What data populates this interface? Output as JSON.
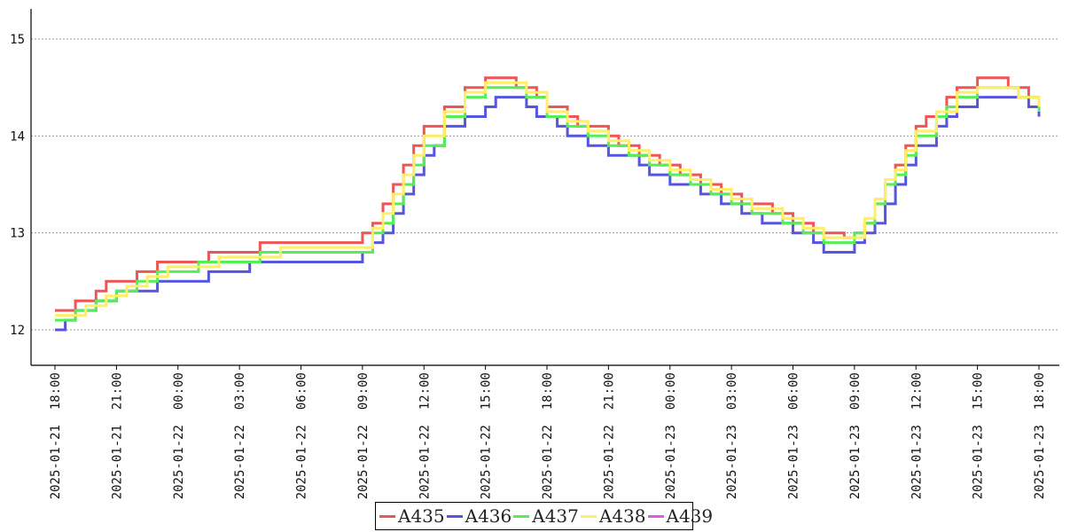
{
  "chart_data": {
    "type": "line",
    "x_label_format": "YYYY-MM-DD HH:MM",
    "x_ticks": [
      "2025-01-21  18:00",
      "2025-01-21  21:00",
      "2025-01-22  00:00",
      "2025-01-22  03:00",
      "2025-01-22  06:00",
      "2025-01-22  09:00",
      "2025-01-22  12:00",
      "2025-01-22  15:00",
      "2025-01-22  18:00",
      "2025-01-22  21:00",
      "2025-01-23  00:00",
      "2025-01-23  03:00",
      "2025-01-23  06:00",
      "2025-01-23  09:00",
      "2025-01-23  12:00",
      "2025-01-23  15:00",
      "2025-01-23  18:00"
    ],
    "y_ticks": [
      "12",
      "13",
      "14",
      "15"
    ],
    "ylim": [
      11.67,
      15.3
    ],
    "grid": "horizontal dotted",
    "legend_position": "bottom-center",
    "series": [
      {
        "name": "A435",
        "color": "#ee5555",
        "points": [
          [
            "2025-01-21 18:00",
            12.2
          ],
          [
            "2025-01-21 19:00",
            12.3
          ],
          [
            "2025-01-21 20:00",
            12.4
          ],
          [
            "2025-01-21 20:30",
            12.5
          ],
          [
            "2025-01-21 22:00",
            12.6
          ],
          [
            "2025-01-21 23:00",
            12.7
          ],
          [
            "2025-01-22 01:30",
            12.8
          ],
          [
            "2025-01-22 04:00",
            12.9
          ],
          [
            "2025-01-22 08:30",
            12.9
          ],
          [
            "2025-01-22 09:00",
            13.0
          ],
          [
            "2025-01-22 09:30",
            13.1
          ],
          [
            "2025-01-22 10:00",
            13.3
          ],
          [
            "2025-01-22 10:30",
            13.5
          ],
          [
            "2025-01-22 11:00",
            13.7
          ],
          [
            "2025-01-22 11:30",
            13.9
          ],
          [
            "2025-01-22 12:00",
            14.1
          ],
          [
            "2025-01-22 13:00",
            14.3
          ],
          [
            "2025-01-22 14:00",
            14.5
          ],
          [
            "2025-01-22 15:00",
            14.6
          ],
          [
            "2025-01-22 16:30",
            14.5
          ],
          [
            "2025-01-22 17:30",
            14.4
          ],
          [
            "2025-01-22 18:00",
            14.3
          ],
          [
            "2025-01-22 19:00",
            14.2
          ],
          [
            "2025-01-22 19:30",
            14.1
          ],
          [
            "2025-01-22 21:00",
            14.0
          ],
          [
            "2025-01-22 21:30",
            13.9
          ],
          [
            "2025-01-22 22:30",
            13.8
          ],
          [
            "2025-01-22 23:30",
            13.7
          ],
          [
            "2025-01-23 00:30",
            13.6
          ],
          [
            "2025-01-23 01:30",
            13.5
          ],
          [
            "2025-01-23 02:30",
            13.4
          ],
          [
            "2025-01-23 03:30",
            13.3
          ],
          [
            "2025-01-23 05:00",
            13.2
          ],
          [
            "2025-01-23 06:00",
            13.1
          ],
          [
            "2025-01-23 07:00",
            13.0
          ],
          [
            "2025-01-23 08:30",
            12.95
          ],
          [
            "2025-01-23 09:00",
            13.0
          ],
          [
            "2025-01-23 09:30",
            13.1
          ],
          [
            "2025-01-23 10:00",
            13.3
          ],
          [
            "2025-01-23 10:30",
            13.5
          ],
          [
            "2025-01-23 11:00",
            13.7
          ],
          [
            "2025-01-23 11:30",
            13.9
          ],
          [
            "2025-01-23 12:00",
            14.1
          ],
          [
            "2025-01-23 12:30",
            14.2
          ],
          [
            "2025-01-23 13:30",
            14.4
          ],
          [
            "2025-01-23 14:00",
            14.5
          ],
          [
            "2025-01-23 15:00",
            14.6
          ],
          [
            "2025-01-23 16:30",
            14.5
          ],
          [
            "2025-01-23 17:30",
            14.4
          ],
          [
            "2025-01-23 18:00",
            14.3
          ]
        ]
      },
      {
        "name": "A436",
        "color": "#5555dd",
        "points": [
          [
            "2025-01-21 18:00",
            12.0
          ],
          [
            "2025-01-21 18:30",
            12.1
          ],
          [
            "2025-01-21 19:00",
            12.2
          ],
          [
            "2025-01-21 20:00",
            12.3
          ],
          [
            "2025-01-21 21:00",
            12.4
          ],
          [
            "2025-01-21 23:00",
            12.5
          ],
          [
            "2025-01-22 01:30",
            12.6
          ],
          [
            "2025-01-22 03:30",
            12.7
          ],
          [
            "2025-01-22 09:00",
            12.8
          ],
          [
            "2025-01-22 09:30",
            12.9
          ],
          [
            "2025-01-22 10:00",
            13.0
          ],
          [
            "2025-01-22 10:30",
            13.2
          ],
          [
            "2025-01-22 11:00",
            13.4
          ],
          [
            "2025-01-22 11:30",
            13.6
          ],
          [
            "2025-01-22 12:00",
            13.8
          ],
          [
            "2025-01-22 12:30",
            13.9
          ],
          [
            "2025-01-22 13:00",
            14.1
          ],
          [
            "2025-01-22 14:00",
            14.2
          ],
          [
            "2025-01-22 15:00",
            14.3
          ],
          [
            "2025-01-22 15:30",
            14.4
          ],
          [
            "2025-01-22 17:00",
            14.3
          ],
          [
            "2025-01-22 17:30",
            14.2
          ],
          [
            "2025-01-22 18:30",
            14.1
          ],
          [
            "2025-01-22 19:00",
            14.0
          ],
          [
            "2025-01-22 20:00",
            13.9
          ],
          [
            "2025-01-22 21:00",
            13.8
          ],
          [
            "2025-01-22 22:30",
            13.7
          ],
          [
            "2025-01-22 23:00",
            13.6
          ],
          [
            "2025-01-23 00:00",
            13.5
          ],
          [
            "2025-01-23 01:30",
            13.4
          ],
          [
            "2025-01-23 02:30",
            13.3
          ],
          [
            "2025-01-23 03:30",
            13.2
          ],
          [
            "2025-01-23 04:30",
            13.1
          ],
          [
            "2025-01-23 06:00",
            13.0
          ],
          [
            "2025-01-23 07:00",
            12.9
          ],
          [
            "2025-01-23 07:30",
            12.8
          ],
          [
            "2025-01-23 09:00",
            12.9
          ],
          [
            "2025-01-23 09:30",
            13.0
          ],
          [
            "2025-01-23 10:00",
            13.1
          ],
          [
            "2025-01-23 10:30",
            13.3
          ],
          [
            "2025-01-23 11:00",
            13.5
          ],
          [
            "2025-01-23 11:30",
            13.7
          ],
          [
            "2025-01-23 12:00",
            13.9
          ],
          [
            "2025-01-23 13:00",
            14.1
          ],
          [
            "2025-01-23 13:30",
            14.2
          ],
          [
            "2025-01-23 14:00",
            14.3
          ],
          [
            "2025-01-23 15:00",
            14.4
          ],
          [
            "2025-01-23 17:30",
            14.3
          ],
          [
            "2025-01-23 18:00",
            14.2
          ]
        ]
      },
      {
        "name": "A437",
        "color": "#55ee55",
        "points": [
          [
            "2025-01-21 18:00",
            12.1
          ],
          [
            "2025-01-21 19:00",
            12.2
          ],
          [
            "2025-01-21 20:00",
            12.3
          ],
          [
            "2025-01-21 21:00",
            12.4
          ],
          [
            "2025-01-21 22:00",
            12.5
          ],
          [
            "2025-01-21 23:00",
            12.6
          ],
          [
            "2025-01-22 01:00",
            12.7
          ],
          [
            "2025-01-22 04:00",
            12.8
          ],
          [
            "2025-01-22 09:00",
            12.8
          ],
          [
            "2025-01-22 09:30",
            13.0
          ],
          [
            "2025-01-22 10:00",
            13.1
          ],
          [
            "2025-01-22 10:30",
            13.3
          ],
          [
            "2025-01-22 11:00",
            13.5
          ],
          [
            "2025-01-22 11:30",
            13.7
          ],
          [
            "2025-01-22 12:00",
            13.9
          ],
          [
            "2025-01-22 13:00",
            14.2
          ],
          [
            "2025-01-22 14:00",
            14.4
          ],
          [
            "2025-01-22 15:00",
            14.5
          ],
          [
            "2025-01-22 17:00",
            14.4
          ],
          [
            "2025-01-22 18:00",
            14.2
          ],
          [
            "2025-01-22 19:00",
            14.1
          ],
          [
            "2025-01-22 20:00",
            14.0
          ],
          [
            "2025-01-22 21:00",
            13.9
          ],
          [
            "2025-01-22 22:00",
            13.8
          ],
          [
            "2025-01-22 23:00",
            13.7
          ],
          [
            "2025-01-23 00:00",
            13.6
          ],
          [
            "2025-01-23 01:00",
            13.5
          ],
          [
            "2025-01-23 02:00",
            13.4
          ],
          [
            "2025-01-23 03:00",
            13.3
          ],
          [
            "2025-01-23 04:00",
            13.2
          ],
          [
            "2025-01-23 05:30",
            13.1
          ],
          [
            "2025-01-23 06:30",
            13.0
          ],
          [
            "2025-01-23 07:30",
            12.9
          ],
          [
            "2025-01-23 09:00",
            13.0
          ],
          [
            "2025-01-23 09:30",
            13.1
          ],
          [
            "2025-01-23 10:00",
            13.3
          ],
          [
            "2025-01-23 10:30",
            13.5
          ],
          [
            "2025-01-23 11:00",
            13.6
          ],
          [
            "2025-01-23 11:30",
            13.8
          ],
          [
            "2025-01-23 12:00",
            14.0
          ],
          [
            "2025-01-23 13:00",
            14.2
          ],
          [
            "2025-01-23 13:30",
            14.3
          ],
          [
            "2025-01-23 14:00",
            14.4
          ],
          [
            "2025-01-23 15:00",
            14.5
          ],
          [
            "2025-01-23 17:00",
            14.4
          ],
          [
            "2025-01-23 18:00",
            14.25
          ]
        ]
      },
      {
        "name": "A438",
        "color": "#ffee66",
        "points": [
          [
            "2025-01-21 18:00",
            12.15
          ],
          [
            "2025-01-21 19:30",
            12.25
          ],
          [
            "2025-01-21 20:30",
            12.35
          ],
          [
            "2025-01-21 21:30",
            12.45
          ],
          [
            "2025-01-21 22:30",
            12.55
          ],
          [
            "2025-01-21 23:30",
            12.65
          ],
          [
            "2025-01-22 02:00",
            12.75
          ],
          [
            "2025-01-22 05:00",
            12.85
          ],
          [
            "2025-01-22 09:00",
            12.85
          ],
          [
            "2025-01-22 09:30",
            13.05
          ],
          [
            "2025-01-22 10:00",
            13.2
          ],
          [
            "2025-01-22 10:30",
            13.4
          ],
          [
            "2025-01-22 11:00",
            13.6
          ],
          [
            "2025-01-22 11:30",
            13.8
          ],
          [
            "2025-01-22 12:00",
            14.0
          ],
          [
            "2025-01-22 13:00",
            14.25
          ],
          [
            "2025-01-22 14:00",
            14.45
          ],
          [
            "2025-01-22 15:00",
            14.55
          ],
          [
            "2025-01-22 17:00",
            14.45
          ],
          [
            "2025-01-22 18:00",
            14.25
          ],
          [
            "2025-01-22 19:00",
            14.15
          ],
          [
            "2025-01-22 20:00",
            14.05
          ],
          [
            "2025-01-22 21:00",
            13.95
          ],
          [
            "2025-01-22 22:00",
            13.85
          ],
          [
            "2025-01-22 23:00",
            13.75
          ],
          [
            "2025-01-23 00:00",
            13.65
          ],
          [
            "2025-01-23 01:00",
            13.55
          ],
          [
            "2025-01-23 02:00",
            13.45
          ],
          [
            "2025-01-23 03:00",
            13.35
          ],
          [
            "2025-01-23 04:00",
            13.25
          ],
          [
            "2025-01-23 05:30",
            13.15
          ],
          [
            "2025-01-23 06:30",
            13.05
          ],
          [
            "2025-01-23 07:30",
            12.95
          ],
          [
            "2025-01-23 09:00",
            12.95
          ],
          [
            "2025-01-23 09:30",
            13.15
          ],
          [
            "2025-01-23 10:00",
            13.35
          ],
          [
            "2025-01-23 10:30",
            13.55
          ],
          [
            "2025-01-23 11:00",
            13.65
          ],
          [
            "2025-01-23 11:30",
            13.85
          ],
          [
            "2025-01-23 12:00",
            14.05
          ],
          [
            "2025-01-23 13:00",
            14.25
          ],
          [
            "2025-01-23 14:00",
            14.45
          ],
          [
            "2025-01-23 15:00",
            14.5
          ],
          [
            "2025-01-23 17:00",
            14.4
          ],
          [
            "2025-01-23 18:00",
            14.3
          ]
        ]
      },
      {
        "name": "A439",
        "color": "#ee55dd",
        "points": []
      }
    ]
  }
}
